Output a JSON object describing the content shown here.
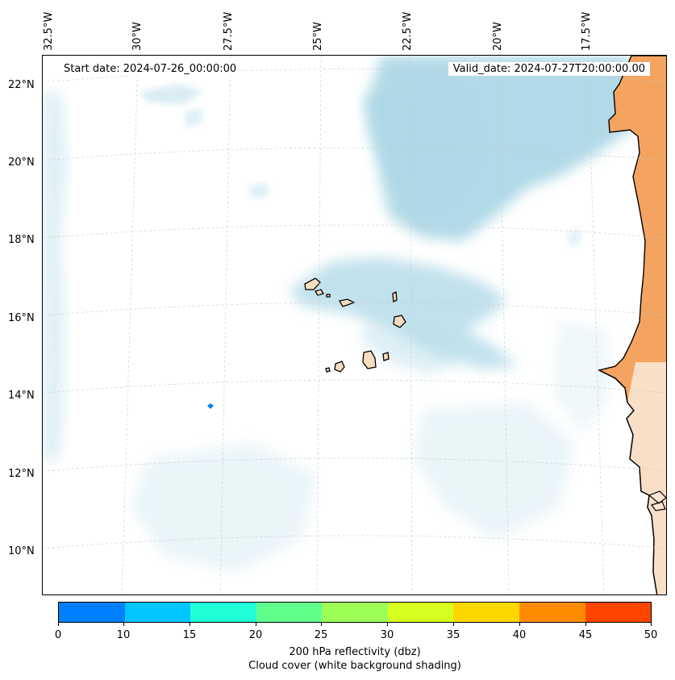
{
  "map": {
    "start_date": "Start date: 2024-07-26_00:00:00",
    "valid_date": "Valid_date: 2024-07-27T20:00:00.00",
    "lon_labels": [
      "32.5°W",
      "30°W",
      "27.5°W",
      "25°W",
      "22.5°W",
      "20°W",
      "17.5°W"
    ],
    "lat_labels": [
      "22°N",
      "20°N",
      "18°N",
      "16°N",
      "14°N",
      "12°N",
      "10°N"
    ],
    "features": [
      "Cape Verde islands",
      "West African coastline",
      "reflectivity echo (0-10 dbz)"
    ]
  },
  "colorbar": {
    "ticks": [
      "0",
      "10",
      "15",
      "20",
      "25",
      "30",
      "35",
      "40",
      "45",
      "50"
    ],
    "colors": [
      "#007fff",
      "#00c5ff",
      "#20ffd8",
      "#60ff8c",
      "#9cff58",
      "#d6ff20",
      "#ffd700",
      "#ff8c00",
      "#ff4500"
    ],
    "label_line1": "200 hPa reflectivity (dbz)",
    "label_line2": "Cloud cover (white background shading)"
  },
  "colors": {
    "land": "#f4a460",
    "cloud": "#add8e6",
    "island": "#f7dcc0"
  }
}
